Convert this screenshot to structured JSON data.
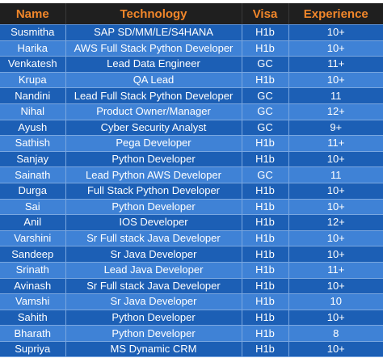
{
  "headers": {
    "name": "Name",
    "technology": "Technology",
    "visa": "Visa",
    "experience": "Experience"
  },
  "rows": [
    {
      "name": "Susmitha",
      "technology": "SAP SD/MM/LE/S4HANA",
      "visa": "H1b",
      "experience": "10+"
    },
    {
      "name": "Harika",
      "technology": "AWS Full Stack Python Developer",
      "visa": "H1b",
      "experience": "10+"
    },
    {
      "name": "Venkatesh",
      "technology": "Lead Data Engineer",
      "visa": "GC",
      "experience": "11+"
    },
    {
      "name": "Krupa",
      "technology": "QA Lead",
      "visa": "H1b",
      "experience": "10+"
    },
    {
      "name": "Nandini",
      "technology": "Lead Full Stack Python Developer",
      "visa": "GC",
      "experience": "11"
    },
    {
      "name": "Nihal",
      "technology": "Product Owner/Manager",
      "visa": "GC",
      "experience": "12+"
    },
    {
      "name": "Ayush",
      "technology": "Cyber Security Analyst",
      "visa": "GC",
      "experience": "9+"
    },
    {
      "name": "Sathish",
      "technology": "Pega Developer",
      "visa": "H1b",
      "experience": "11+"
    },
    {
      "name": "Sanjay",
      "technology": "Python Developer",
      "visa": "H1b",
      "experience": "10+"
    },
    {
      "name": "Sainath",
      "technology": "Lead Python AWS Developer",
      "visa": "GC",
      "experience": "11"
    },
    {
      "name": "Durga",
      "technology": "Full Stack Python Developer",
      "visa": "H1b",
      "experience": "10+"
    },
    {
      "name": "Sai",
      "technology": "Python Developer",
      "visa": "H1b",
      "experience": "10+"
    },
    {
      "name": "Anil",
      "technology": "IOS Developer",
      "visa": "H1b",
      "experience": "12+"
    },
    {
      "name": "Varshini",
      "technology": "Sr Full stack Java Developer",
      "visa": "H1b",
      "experience": "10+"
    },
    {
      "name": "Sandeep",
      "technology": "Sr Java Developer",
      "visa": "H1b",
      "experience": "10+"
    },
    {
      "name": "Srinath",
      "technology": "Lead Java Developer",
      "visa": "H1b",
      "experience": "11+"
    },
    {
      "name": "Avinash",
      "technology": "Sr Full stack Java Developer",
      "visa": "H1b",
      "experience": "10+"
    },
    {
      "name": "Vamshi",
      "technology": "Sr Java Developer",
      "visa": "H1b",
      "experience": "10"
    },
    {
      "name": "Sahith",
      "technology": "Python Developer",
      "visa": "H1b",
      "experience": "10+"
    },
    {
      "name": "Bharath",
      "technology": "Python Developer",
      "visa": "H1b",
      "experience": "8"
    },
    {
      "name": "Supriya",
      "technology": "MS Dynamic CRM",
      "visa": "H1b",
      "experience": "10+"
    }
  ],
  "colors": {
    "header_background": "#1f1f1f",
    "header_text": "#f0862a",
    "row_dark": "#1c5fb5",
    "row_light": "#3f82d6",
    "cell_text": "#ffffff"
  }
}
